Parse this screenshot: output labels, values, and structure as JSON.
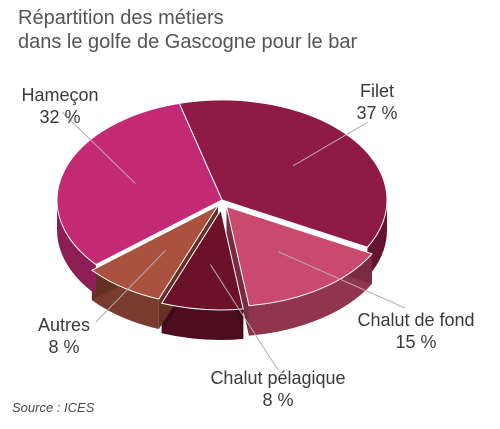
{
  "title": {
    "line1": "Répartition des métiers",
    "line2": "dans le golfe de Gascogne pour le bar"
  },
  "chart_data": {
    "type": "pie",
    "style": "3d-exploded",
    "slices": [
      {
        "name": "Filet",
        "value": 37,
        "label": "37 %",
        "color": "#8e1a45"
      },
      {
        "name": "Chalut de fond",
        "value": 15,
        "label": "15 %",
        "color": "#c94a6c"
      },
      {
        "name": "Chalut pélagique",
        "value": 8,
        "label": "8 %",
        "color": "#6b1229"
      },
      {
        "name": "Autres",
        "value": 8,
        "label": "8 %",
        "color": "#a8523f"
      },
      {
        "name": "Hameçon",
        "value": 32,
        "label": "32 %",
        "color": "#c42a74"
      }
    ]
  },
  "source": "Source : ICES"
}
